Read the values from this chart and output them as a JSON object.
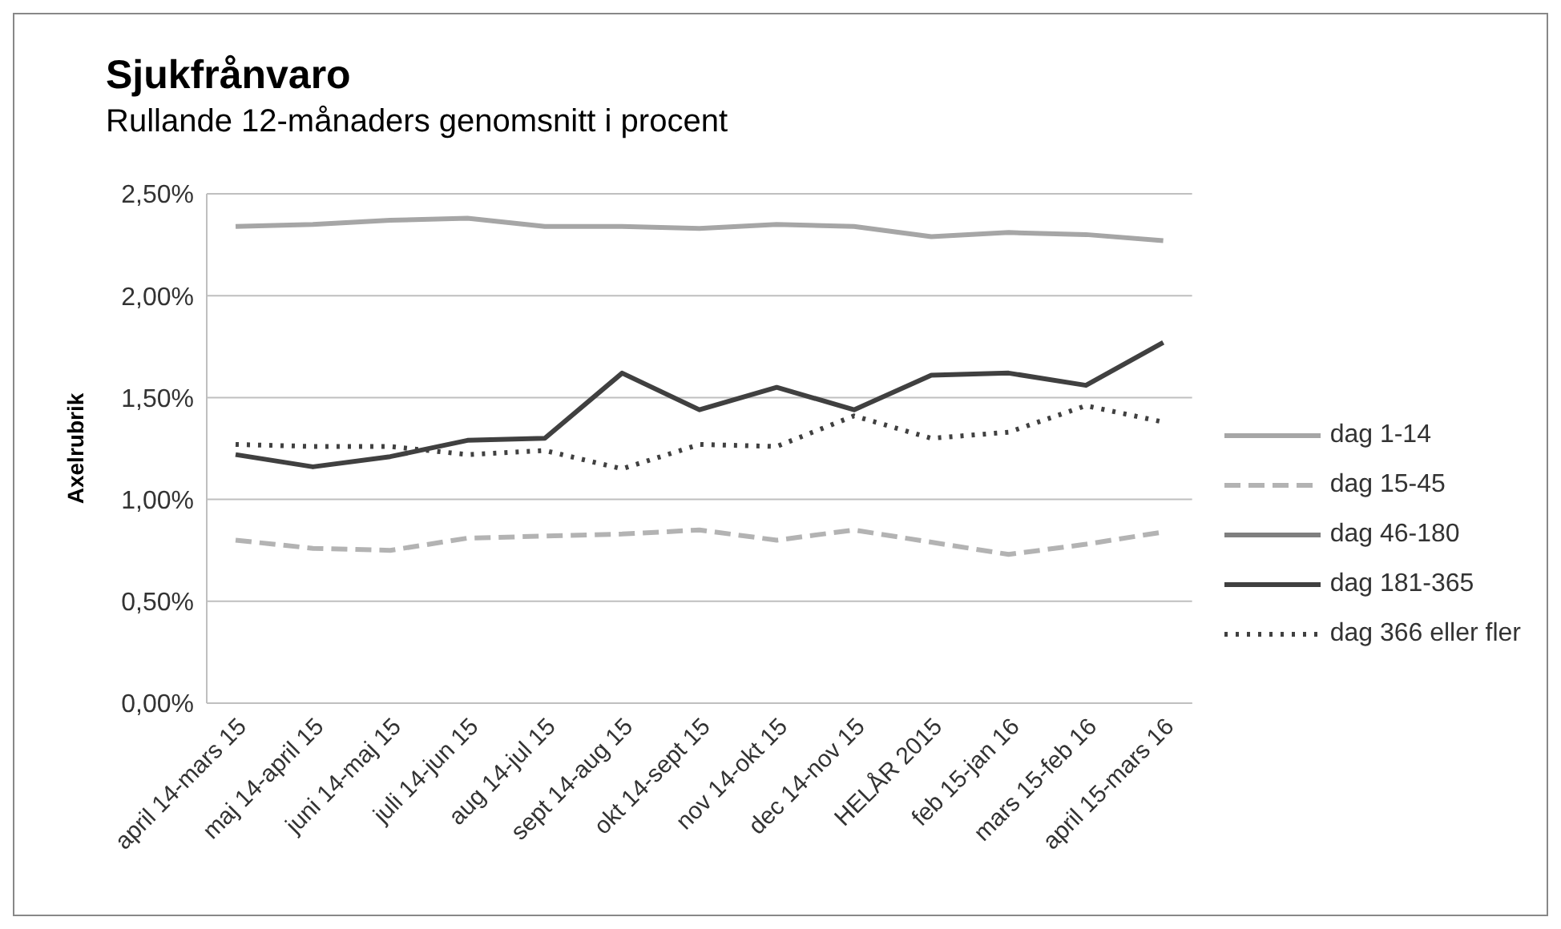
{
  "chart_data": {
    "type": "line",
    "title": "Sjukfrånvaro",
    "subtitle": "Rullande 12-månaders genomsnitt i procent",
    "ylabel": "Axelrubrik",
    "categories": [
      "april 14-mars 15",
      "maj 14-april 15",
      "juni 14-maj 15",
      "juli 14-jun 15",
      "aug 14-jul 15",
      "sept 14-aug 15",
      "okt 14-sept 15",
      "nov 14-okt 15",
      "dec 14-nov 15",
      "HELÅR 2015",
      "feb 15-jan 16",
      "mars 15-feb 16",
      "april 15-mars 16"
    ],
    "series": [
      {
        "name": "dag 1-14",
        "color": "#a6a6a6",
        "line_style": "solid",
        "values": [
          2.34,
          2.35,
          2.37,
          2.38,
          2.34,
          2.34,
          2.33,
          2.35,
          2.34,
          2.29,
          2.31,
          2.3,
          2.27
        ]
      },
      {
        "name": "dag 15-45",
        "color": "#b3b3b3",
        "line_style": "dashed",
        "values": [
          0.8,
          0.76,
          0.75,
          0.81,
          0.82,
          0.83,
          0.85,
          0.8,
          0.85,
          0.79,
          0.73,
          0.78,
          0.84
        ]
      },
      {
        "name": "dag 46-180",
        "color": "#7f7f7f",
        "line_style": "solid",
        "values": [
          null,
          null,
          null,
          null,
          null,
          null,
          null,
          null,
          null,
          null,
          null,
          null,
          null
        ]
      },
      {
        "name": "dag 181-365",
        "color": "#404040",
        "line_style": "solid",
        "values": [
          1.22,
          1.16,
          1.21,
          1.29,
          1.3,
          1.62,
          1.44,
          1.55,
          1.44,
          1.61,
          1.62,
          1.56,
          1.77
        ]
      },
      {
        "name": "dag 366 eller fler",
        "color": "#404040",
        "line_style": "dotted",
        "values": [
          1.27,
          1.26,
          1.26,
          1.22,
          1.24,
          1.15,
          1.27,
          1.26,
          1.41,
          1.3,
          1.33,
          1.46,
          1.38
        ]
      }
    ],
    "ylim": [
      0,
      2.5
    ],
    "yticks": [
      {
        "value": 0,
        "label": "0,00%"
      },
      {
        "value": 0.5,
        "label": "0,50%"
      },
      {
        "value": 1,
        "label": "1,00%"
      },
      {
        "value": 1.5,
        "label": "1,50%"
      },
      {
        "value": 2,
        "label": "2,00%"
      },
      {
        "value": 2.5,
        "label": "2,50%"
      }
    ],
    "grid": "y",
    "legend": "right",
    "marker": "none"
  }
}
